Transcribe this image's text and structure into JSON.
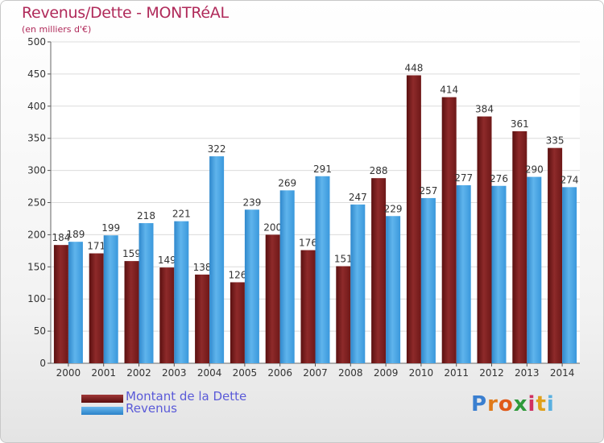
{
  "chart_data": {
    "type": "bar",
    "title": "Revenus/Dette - MONTRéAL",
    "subtitle": "(en milliers d'€)",
    "xlabel": "",
    "ylabel": "",
    "categories": [
      "2000",
      "2001",
      "2002",
      "2003",
      "2004",
      "2005",
      "2006",
      "2007",
      "2008",
      "2009",
      "2010",
      "2011",
      "2012",
      "2013",
      "2014"
    ],
    "series": [
      {
        "name": "Montant de la Dette",
        "color": "#7d2020",
        "values": [
          184,
          171,
          159,
          149,
          138,
          126,
          200,
          176,
          151,
          288,
          448,
          414,
          384,
          361,
          335
        ]
      },
      {
        "name": "Revenus",
        "color": "#3a9ee0",
        "values": [
          189,
          199,
          218,
          221,
          322,
          239,
          269,
          291,
          247,
          229,
          257,
          277,
          276,
          290,
          274
        ]
      }
    ],
    "ylim": [
      0,
      500
    ],
    "yticks": [
      0,
      50,
      100,
      150,
      200,
      250,
      300,
      350,
      400,
      450,
      500
    ],
    "grid": true,
    "legend_position": "bottom-left"
  },
  "legend": {
    "debt_label": "Montant de la Dette",
    "revenue_label": "Revenus"
  },
  "logo": {
    "letters": [
      "P",
      "r",
      "o",
      "x",
      "i",
      "t",
      "i"
    ],
    "colors": [
      "#3a7fd0",
      "#e07a1a",
      "#e05a1a",
      "#2f9a3a",
      "#d03060",
      "#e0a01a",
      "#5ab0e0"
    ]
  }
}
